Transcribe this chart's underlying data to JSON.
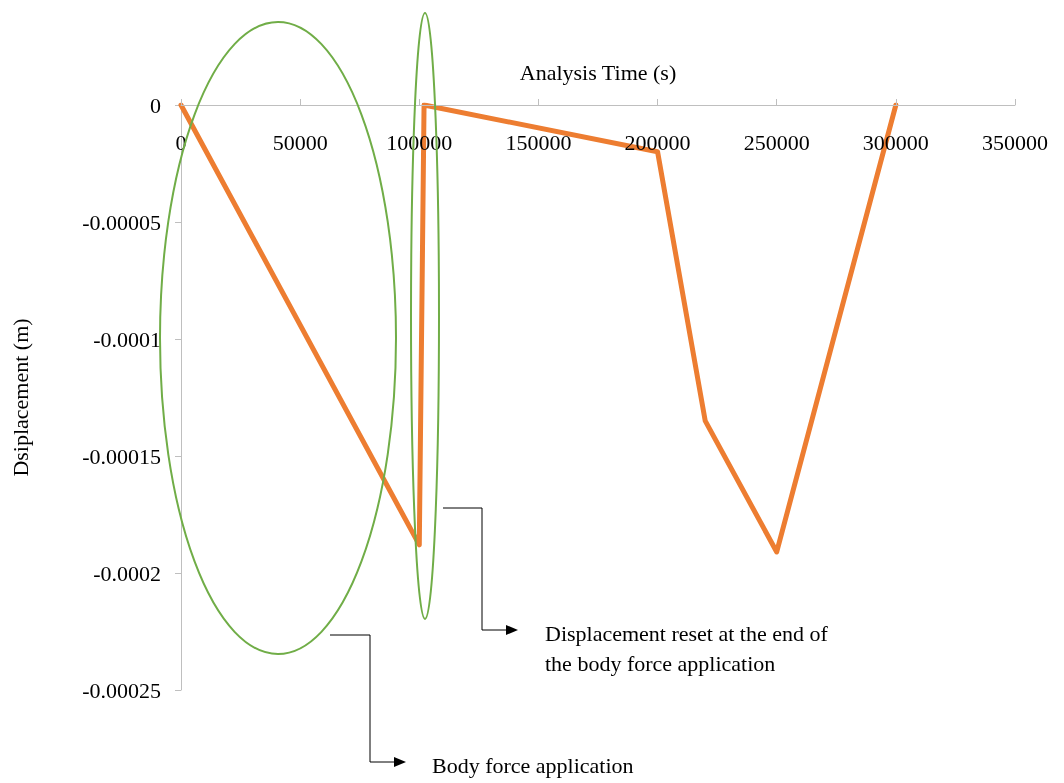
{
  "chart_data": {
    "type": "line",
    "xlabel": "Analysis Time (s)",
    "ylabel": "Dsiplacement (m)",
    "x": [
      0,
      100000,
      102000,
      200000,
      220000,
      250000,
      300000
    ],
    "series": [
      {
        "color": "#ed7d31",
        "values": [
          0,
          -0.000188,
          0,
          -2e-05,
          -0.000135,
          -0.000191,
          0
        ]
      }
    ],
    "xlim": [
      0,
      350000
    ],
    "xticks": [
      0,
      50000,
      100000,
      150000,
      200000,
      250000,
      300000,
      350000
    ],
    "ylim": [
      -0.00025,
      0
    ],
    "yticks": [
      -0.00025,
      -0.0002,
      -0.00015,
      -0.0001,
      {
        "value": -5e-05,
        "label": "-0.00005"
      },
      0
    ],
    "grid": false,
    "marker": "none",
    "line_style": "solid",
    "annotations": [
      "Displacement reset at the end of the body force application",
      "Body force application"
    ]
  }
}
